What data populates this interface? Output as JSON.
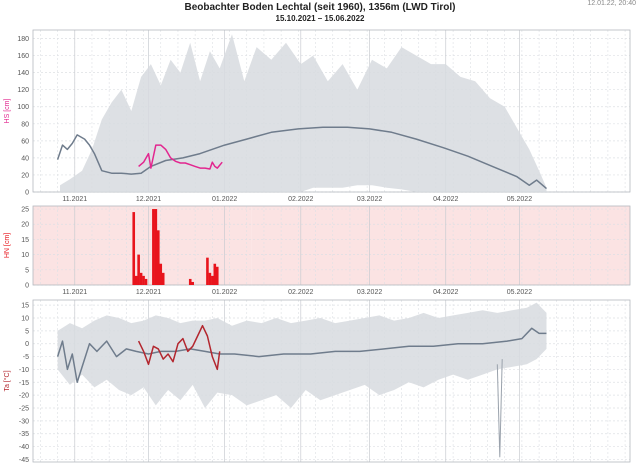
{
  "header": {
    "title": "Beobachter Boden Lechtal (seit 1960), 1356m (LWD Tirol)",
    "subtitle": "15.10.2021 – 15.06.2022",
    "timestamp": "12.01.22, 20:40"
  },
  "colors": {
    "band": "#d7dadf",
    "median": "#6f7c8c",
    "hs_obs": "#e2268f",
    "hn_bar": "#e8141c",
    "hn_bg": "#fbe3e3",
    "ta_obs": "#b3262e",
    "grid": "#dde0e4"
  },
  "chart_data": [
    {
      "type": "area",
      "ylabel": "HS [cm]",
      "ylim": [
        0,
        190
      ],
      "yticks": [
        0,
        20,
        40,
        60,
        80,
        100,
        120,
        140,
        160,
        180
      ],
      "x_range": [
        "2021-10-15",
        "2022-06-15"
      ],
      "x_tick_dates": [
        "2021-11-01",
        "2021-12-01",
        "2022-01-01",
        "2022-02-01",
        "2022-03-01",
        "2022-04-01",
        "2022-05-01"
      ],
      "x_tick_labels": [
        "11.2021",
        "12.2021",
        "01.2022",
        "02.2022",
        "03.2022",
        "04.2022",
        "05.2022"
      ],
      "series": [
        {
          "role": "range",
          "dates": [
            "2021-10-26",
            "2021-10-30",
            "2021-11-04",
            "2021-11-08",
            "2021-11-12",
            "2021-11-16",
            "2021-11-20",
            "2021-11-24",
            "2021-11-28",
            "2021-12-02",
            "2021-12-06",
            "2021-12-10",
            "2021-12-14",
            "2021-12-18",
            "2021-12-22",
            "2021-12-26",
            "2021-12-30",
            "2022-01-04",
            "2022-01-09",
            "2022-01-14",
            "2022-01-20",
            "2022-01-26",
            "2022-02-01",
            "2022-02-06",
            "2022-02-12",
            "2022-02-18",
            "2022-02-24",
            "2022-03-02",
            "2022-03-08",
            "2022-03-14",
            "2022-03-20",
            "2022-03-26",
            "2022-04-01",
            "2022-04-07",
            "2022-04-13",
            "2022-04-19",
            "2022-04-25",
            "2022-05-01",
            "2022-05-05",
            "2022-05-09",
            "2022-05-12"
          ],
          "upper": [
            8,
            15,
            25,
            50,
            85,
            105,
            120,
            95,
            135,
            150,
            125,
            155,
            140,
            175,
            130,
            165,
            145,
            185,
            130,
            170,
            155,
            175,
            150,
            160,
            130,
            150,
            120,
            155,
            145,
            170,
            160,
            150,
            150,
            135,
            130,
            110,
            100,
            70,
            50,
            25,
            5
          ],
          "lower": [
            0,
            0,
            0,
            0,
            0,
            0,
            0,
            0,
            0,
            0,
            0,
            0,
            0,
            0,
            0,
            0,
            0,
            0,
            0,
            0,
            0,
            0,
            0,
            5,
            5,
            5,
            8,
            8,
            5,
            3,
            0,
            0,
            0,
            0,
            0,
            0,
            0,
            0,
            0,
            0,
            0
          ]
        },
        {
          "role": "median",
          "dates": [
            "2021-10-25",
            "2021-10-27",
            "2021-10-29",
            "2021-10-31",
            "2021-11-02",
            "2021-11-05",
            "2021-11-07",
            "2021-11-09",
            "2021-11-12",
            "2021-11-16",
            "2021-11-20",
            "2021-11-24",
            "2021-11-28",
            "2021-12-02",
            "2021-12-08",
            "2021-12-15",
            "2021-12-22",
            "2022-01-01",
            "2022-01-10",
            "2022-01-20",
            "2022-01-31",
            "2022-02-10",
            "2022-02-20",
            "2022-03-01",
            "2022-03-10",
            "2022-03-20",
            "2022-03-31",
            "2022-04-10",
            "2022-04-20",
            "2022-04-30",
            "2022-05-05",
            "2022-05-08",
            "2022-05-12"
          ],
          "values": [
            38,
            55,
            50,
            57,
            67,
            62,
            55,
            45,
            25,
            22,
            22,
            21,
            22,
            30,
            37,
            40,
            45,
            55,
            62,
            70,
            74,
            76,
            76,
            74,
            70,
            62,
            52,
            42,
            30,
            18,
            8,
            14,
            4
          ]
        },
        {
          "role": "observed",
          "dates": [
            "2021-11-27",
            "2021-11-29",
            "2021-12-01",
            "2021-12-02",
            "2021-12-04",
            "2021-12-06",
            "2021-12-08",
            "2021-12-10",
            "2021-12-12",
            "2021-12-14",
            "2021-12-16",
            "2021-12-18",
            "2021-12-20",
            "2021-12-22",
            "2021-12-24",
            "2021-12-26",
            "2021-12-27",
            "2021-12-28",
            "2021-12-29",
            "2021-12-31"
          ],
          "values": [
            30,
            35,
            45,
            28,
            55,
            55,
            50,
            40,
            36,
            34,
            34,
            32,
            30,
            28,
            28,
            27,
            35,
            30,
            28,
            35
          ]
        }
      ]
    },
    {
      "type": "bar",
      "ylabel": "HN [cm]",
      "ylim": [
        0,
        26
      ],
      "yticks": [
        0,
        5,
        10,
        15,
        20,
        25
      ],
      "x_range": [
        "2021-10-15",
        "2022-06-15"
      ],
      "x_tick_dates": [
        "2021-11-01",
        "2021-12-01",
        "2022-01-01",
        "2022-02-01",
        "2022-03-01",
        "2022-04-01",
        "2022-05-01"
      ],
      "x_tick_labels": [
        "11.2021",
        "12.2021",
        "01.2022",
        "02.2022",
        "03.2022",
        "04.2022",
        "05.2022"
      ],
      "shaded_from": "2022-01-12",
      "dates": [
        "2021-11-25",
        "2021-11-26",
        "2021-11-27",
        "2021-11-28",
        "2021-11-29",
        "2021-11-30",
        "2021-12-03",
        "2021-12-04",
        "2021-12-05",
        "2021-12-06",
        "2021-12-07",
        "2021-12-18",
        "2021-12-19",
        "2021-12-25",
        "2021-12-26",
        "2021-12-27",
        "2021-12-28",
        "2021-12-29"
      ],
      "values": [
        24,
        3,
        10,
        4,
        3,
        2,
        25,
        25,
        18,
        7,
        4,
        2,
        1,
        9,
        4,
        3,
        7,
        6
      ]
    },
    {
      "type": "line",
      "ylabel": "Ta [°C]",
      "ylim": [
        -46,
        17
      ],
      "yticks": [
        15,
        10,
        5,
        0,
        -5,
        -10,
        -15,
        -20,
        -25,
        -30,
        -35,
        -40,
        -45
      ],
      "x_range": [
        "2021-10-15",
        "2022-06-15"
      ],
      "x_tick_dates": [
        "2021-11-01",
        "2021-12-01",
        "2022-01-01",
        "2022-02-01",
        "2022-03-01",
        "2022-04-01",
        "2022-05-01"
      ],
      "x_tick_labels": [
        "11.2021",
        "12.2021",
        "01.2022",
        "02.2022",
        "03.2022",
        "04.2022",
        "05.2022"
      ],
      "series": [
        {
          "role": "range",
          "dates": [
            "2021-10-25",
            "2021-10-30",
            "2021-11-04",
            "2021-11-09",
            "2021-11-14",
            "2021-11-19",
            "2021-11-24",
            "2021-11-29",
            "2021-12-04",
            "2021-12-09",
            "2021-12-14",
            "2021-12-19",
            "2021-12-24",
            "2021-12-29",
            "2022-01-04",
            "2022-01-10",
            "2022-01-16",
            "2022-01-22",
            "2022-01-28",
            "2022-02-03",
            "2022-02-09",
            "2022-02-15",
            "2022-02-21",
            "2022-02-27",
            "2022-03-05",
            "2022-03-11",
            "2022-03-17",
            "2022-03-23",
            "2022-03-29",
            "2022-04-04",
            "2022-04-10",
            "2022-04-16",
            "2022-04-22",
            "2022-04-28",
            "2022-05-04",
            "2022-05-08",
            "2022-05-12"
          ],
          "upper": [
            5,
            8,
            6,
            9,
            11,
            10,
            8,
            9,
            11,
            10,
            8,
            9,
            9,
            10,
            7,
            9,
            8,
            10,
            8,
            9,
            10,
            8,
            9,
            10,
            11,
            9,
            10,
            12,
            10,
            11,
            12,
            13,
            12,
            13,
            14,
            16,
            12
          ],
          "lower": [
            -10,
            -16,
            -12,
            -17,
            -14,
            -18,
            -20,
            -17,
            -24,
            -18,
            -22,
            -16,
            -25,
            -19,
            -20,
            -24,
            -22,
            -20,
            -25,
            -18,
            -22,
            -20,
            -18,
            -16,
            -20,
            -18,
            -15,
            -17,
            -14,
            -12,
            -14,
            -12,
            -10,
            -9,
            -8,
            -6,
            -2
          ]
        },
        {
          "role": "median",
          "dates": [
            "2021-10-25",
            "2021-10-27",
            "2021-10-29",
            "2021-10-31",
            "2021-11-02",
            "2021-11-04",
            "2021-11-07",
            "2021-11-10",
            "2021-11-14",
            "2021-11-18",
            "2021-11-22",
            "2021-11-26",
            "2021-12-01",
            "2021-12-06",
            "2021-12-12",
            "2021-12-18",
            "2021-12-24",
            "2021-12-30",
            "2022-01-05",
            "2022-01-15",
            "2022-01-25",
            "2022-02-05",
            "2022-02-15",
            "2022-02-25",
            "2022-03-07",
            "2022-03-17",
            "2022-03-27",
            "2022-04-06",
            "2022-04-16",
            "2022-04-26",
            "2022-05-02",
            "2022-05-06",
            "2022-05-09",
            "2022-05-12"
          ],
          "values": [
            -5,
            1,
            -10,
            -4,
            -15,
            -9,
            0,
            -3,
            1,
            -5,
            -2,
            -3,
            -4,
            -3,
            -3,
            -2,
            -3,
            -4,
            -4,
            -5,
            -4,
            -4,
            -3,
            -3,
            -2,
            -1,
            -1,
            0,
            0,
            1,
            2,
            6,
            4,
            4
          ]
        },
        {
          "role": "observed",
          "dates": [
            "2021-11-27",
            "2021-11-29",
            "2021-12-01",
            "2021-12-03",
            "2021-12-05",
            "2021-12-07",
            "2021-12-09",
            "2021-12-11",
            "2021-12-13",
            "2021-12-15",
            "2021-12-17",
            "2021-12-19",
            "2021-12-21",
            "2021-12-23",
            "2021-12-25",
            "2021-12-27",
            "2021-12-29",
            "2021-12-30"
          ],
          "values": [
            1,
            -3,
            -8,
            -1,
            -2,
            -6,
            -4,
            -7,
            0,
            2,
            -3,
            -1,
            3,
            7,
            3,
            -5,
            -10,
            -3
          ]
        },
        {
          "role": "spike",
          "dates": [
            "2022-04-22",
            "2022-04-23",
            "2022-04-24"
          ],
          "values": [
            -8,
            -44,
            -6
          ]
        }
      ]
    }
  ]
}
